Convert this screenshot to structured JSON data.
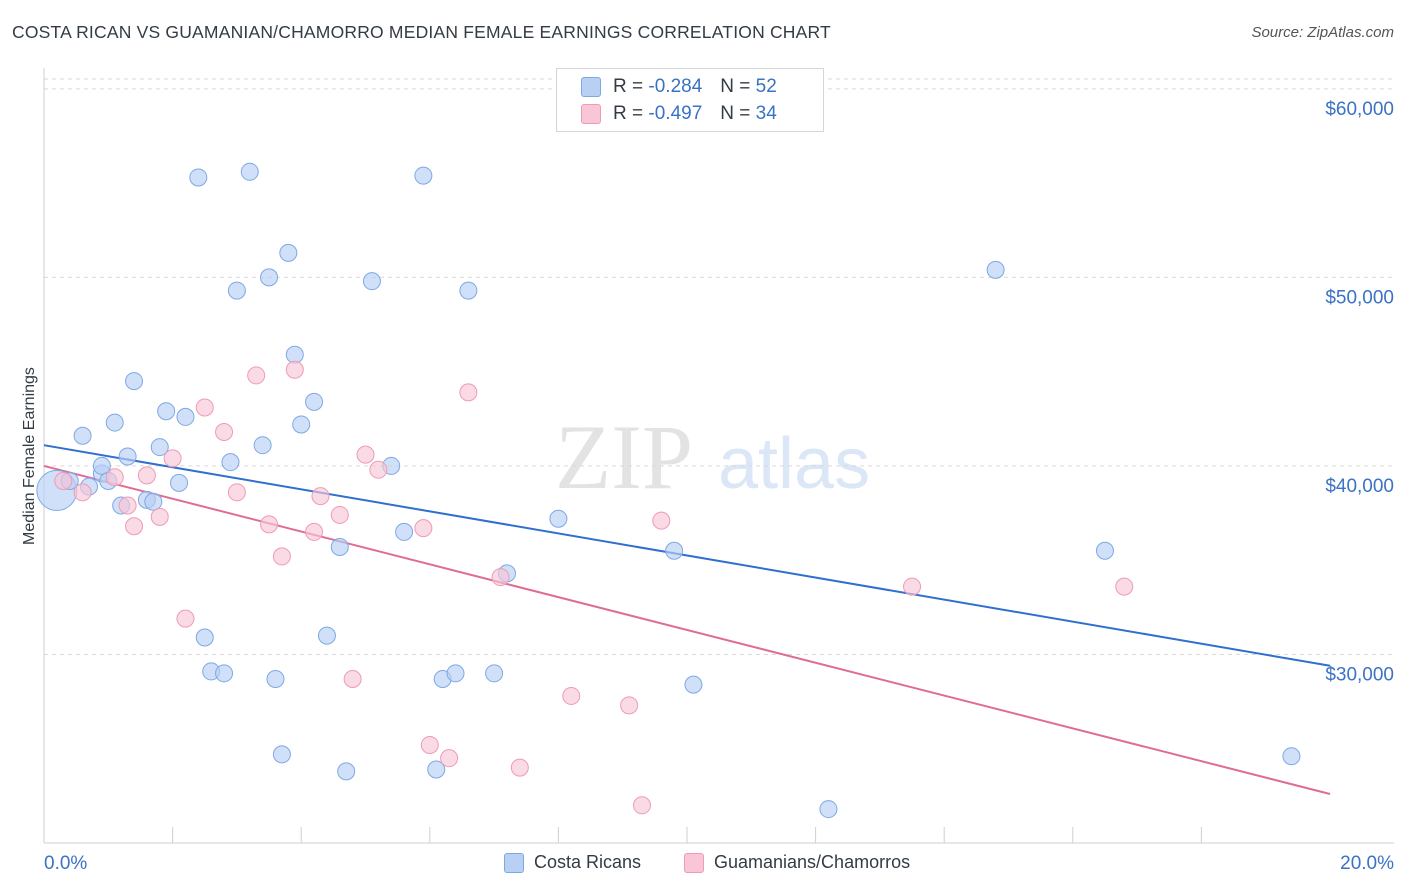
{
  "title": "COSTA RICAN VS GUAMANIAN/CHAMORRO MEDIAN FEMALE EARNINGS CORRELATION CHART",
  "source": "Source: ZipAtlas.com",
  "watermark": {
    "zip": "ZIP",
    "atlas": "atlas"
  },
  "legend_top": [
    {
      "r_label": "R = ",
      "r_value": "-0.284",
      "n_label": "N = ",
      "n_value": "52"
    },
    {
      "r_label": "R = ",
      "r_value": "-0.497",
      "n_label": "N = ",
      "n_value": "34"
    }
  ],
  "legend_bottom": [
    "Costa Ricans",
    "Guamanians/Chamorros"
  ],
  "colors": {
    "blue_fill": "#b7d0f4",
    "blue_stroke": "#7ea8e4",
    "blue_line": "#2f6fcf",
    "pink_fill": "#f8c6d6",
    "pink_stroke": "#ee9bb6",
    "pink_line": "#e06c96",
    "tick_label": "#3a72c4",
    "grid": "#d9d9d9"
  },
  "chart_data": {
    "type": "scatter",
    "xlabel": "",
    "ylabel": "Median Female Earnings",
    "xlim": [
      0,
      20
    ],
    "ylim": [
      20000,
      61000
    ],
    "x_tick_labels": [
      {
        "value": 0,
        "label": "0.0%"
      },
      {
        "value": 20,
        "label": "20.0%"
      }
    ],
    "y_ticks": [
      {
        "value": 30000,
        "label": "$30,000"
      },
      {
        "value": 40000,
        "label": "$40,000"
      },
      {
        "value": 50000,
        "label": "$50,000"
      },
      {
        "value": 60000,
        "label": "$60,000"
      }
    ],
    "grid": "horizontal dashed",
    "legend_placement": "top-center and bottom",
    "series": [
      {
        "name": "Costa Ricans",
        "trend": {
          "x": [
            0,
            20
          ],
          "y": [
            41100,
            29400
          ]
        },
        "points": [
          [
            0.2,
            38700
          ],
          [
            0.4,
            39200
          ],
          [
            0.6,
            41600
          ],
          [
            0.7,
            38900
          ],
          [
            0.9,
            39600
          ],
          [
            0.9,
            40000
          ],
          [
            1.0,
            39200
          ],
          [
            1.1,
            42300
          ],
          [
            1.2,
            37900
          ],
          [
            1.3,
            40500
          ],
          [
            1.4,
            44500
          ],
          [
            1.6,
            38200
          ],
          [
            1.7,
            38100
          ],
          [
            1.8,
            41000
          ],
          [
            1.9,
            42900
          ],
          [
            2.1,
            39100
          ],
          [
            2.2,
            42600
          ],
          [
            2.4,
            55300
          ],
          [
            2.5,
            30900
          ],
          [
            2.6,
            29100
          ],
          [
            2.8,
            29000
          ],
          [
            2.9,
            40200
          ],
          [
            3.0,
            49300
          ],
          [
            3.2,
            55600
          ],
          [
            3.4,
            41100
          ],
          [
            3.5,
            50000
          ],
          [
            3.6,
            28700
          ],
          [
            3.7,
            24700
          ],
          [
            3.8,
            51300
          ],
          [
            3.9,
            45900
          ],
          [
            4.0,
            42200
          ],
          [
            4.2,
            43400
          ],
          [
            4.4,
            31000
          ],
          [
            4.6,
            35700
          ],
          [
            4.7,
            23800
          ],
          [
            5.1,
            49800
          ],
          [
            5.4,
            40000
          ],
          [
            5.6,
            36500
          ],
          [
            5.9,
            55400
          ],
          [
            6.1,
            23900
          ],
          [
            6.2,
            28700
          ],
          [
            6.4,
            29000
          ],
          [
            6.6,
            49300
          ],
          [
            7.0,
            29000
          ],
          [
            7.2,
            34300
          ],
          [
            8.0,
            37200
          ],
          [
            9.8,
            35500
          ],
          [
            10.1,
            28400
          ],
          [
            12.2,
            21800
          ],
          [
            14.8,
            50400
          ],
          [
            16.5,
            35500
          ],
          [
            19.4,
            24600
          ]
        ]
      },
      {
        "name": "Guamanians/Chamorros",
        "trend": {
          "x": [
            0,
            20
          ],
          "y": [
            40000,
            22600
          ]
        },
        "points": [
          [
            0.3,
            39200
          ],
          [
            0.6,
            38600
          ],
          [
            1.1,
            39400
          ],
          [
            1.3,
            37900
          ],
          [
            1.4,
            36800
          ],
          [
            1.6,
            39500
          ],
          [
            1.8,
            37300
          ],
          [
            2.0,
            40400
          ],
          [
            2.2,
            31900
          ],
          [
            2.5,
            43100
          ],
          [
            2.8,
            41800
          ],
          [
            3.0,
            38600
          ],
          [
            3.3,
            44800
          ],
          [
            3.5,
            36900
          ],
          [
            3.7,
            35200
          ],
          [
            3.9,
            45100
          ],
          [
            4.2,
            36500
          ],
          [
            4.3,
            38400
          ],
          [
            4.6,
            37400
          ],
          [
            4.8,
            28700
          ],
          [
            5.0,
            40600
          ],
          [
            5.2,
            39800
          ],
          [
            5.9,
            36700
          ],
          [
            6.0,
            25200
          ],
          [
            6.3,
            24500
          ],
          [
            6.6,
            43900
          ],
          [
            7.1,
            34100
          ],
          [
            7.4,
            24000
          ],
          [
            8.2,
            27800
          ],
          [
            9.1,
            27300
          ],
          [
            9.3,
            22000
          ],
          [
            9.6,
            37100
          ],
          [
            13.5,
            33600
          ],
          [
            16.8,
            33600
          ]
        ]
      }
    ]
  }
}
